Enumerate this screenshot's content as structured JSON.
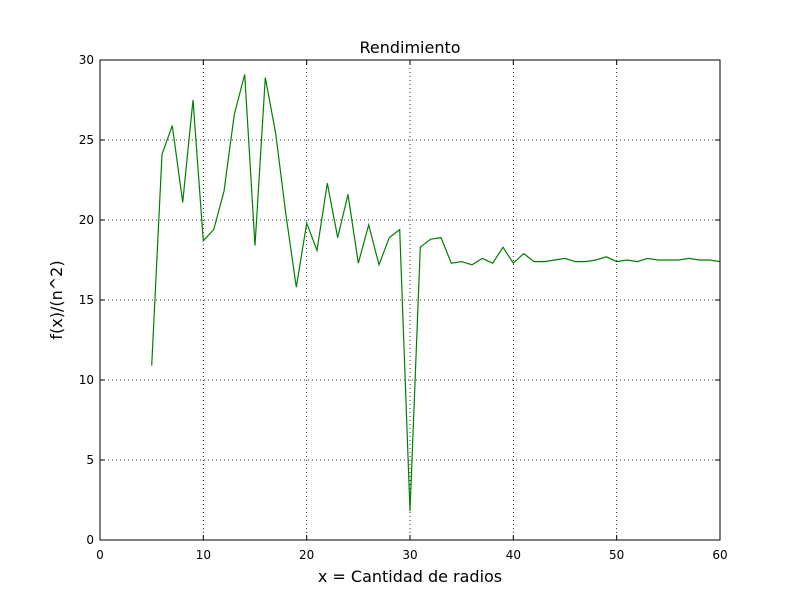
{
  "chart_data": {
    "type": "line",
    "title": "Rendimiento",
    "xlabel": "x = Cantidad de radios",
    "ylabel": "f(x)/(n^2)",
    "xlim": [
      0,
      60
    ],
    "ylim": [
      0,
      30
    ],
    "xticks": [
      0,
      10,
      20,
      30,
      40,
      50,
      60
    ],
    "yticks": [
      0,
      5,
      10,
      15,
      20,
      25,
      30
    ],
    "xtick_labels": [
      "0",
      "10",
      "20",
      "30",
      "40",
      "50",
      "60"
    ],
    "ytick_labels": [
      "0",
      "5",
      "10",
      "15",
      "20",
      "25",
      "30"
    ],
    "grid": true,
    "colors": {
      "line": "#008000",
      "grid": "#000000",
      "axes": "#000000"
    },
    "series": [
      {
        "x": [
          5,
          6,
          7,
          8,
          9,
          10,
          11,
          12,
          13,
          14,
          15,
          16,
          17,
          18,
          19,
          20,
          21,
          22,
          23,
          24,
          25,
          26,
          27,
          28,
          29,
          30,
          31,
          32,
          33,
          34,
          35,
          36,
          37,
          38,
          39,
          40,
          41,
          42,
          43,
          44,
          45,
          46,
          47,
          48,
          49,
          50,
          51,
          52,
          53,
          54,
          55,
          56,
          57,
          58,
          59,
          60
        ],
        "y": [
          10.9,
          24.1,
          25.9,
          21.1,
          27.5,
          18.7,
          19.4,
          21.8,
          26.6,
          29.1,
          18.4,
          28.9,
          25.4,
          20.3,
          15.8,
          19.8,
          18.1,
          22.3,
          18.9,
          21.6,
          17.3,
          19.7,
          17.2,
          18.9,
          19.4,
          1.8,
          18.3,
          18.8,
          18.9,
          17.3,
          17.4,
          17.2,
          17.6,
          17.3,
          18.3,
          17.3,
          17.9,
          17.4,
          17.4,
          17.5,
          17.6,
          17.4,
          17.4,
          17.5,
          17.7,
          17.4,
          17.5,
          17.4,
          17.6,
          17.5,
          17.5,
          17.5,
          17.6,
          17.5,
          17.5,
          17.4
        ]
      }
    ]
  }
}
